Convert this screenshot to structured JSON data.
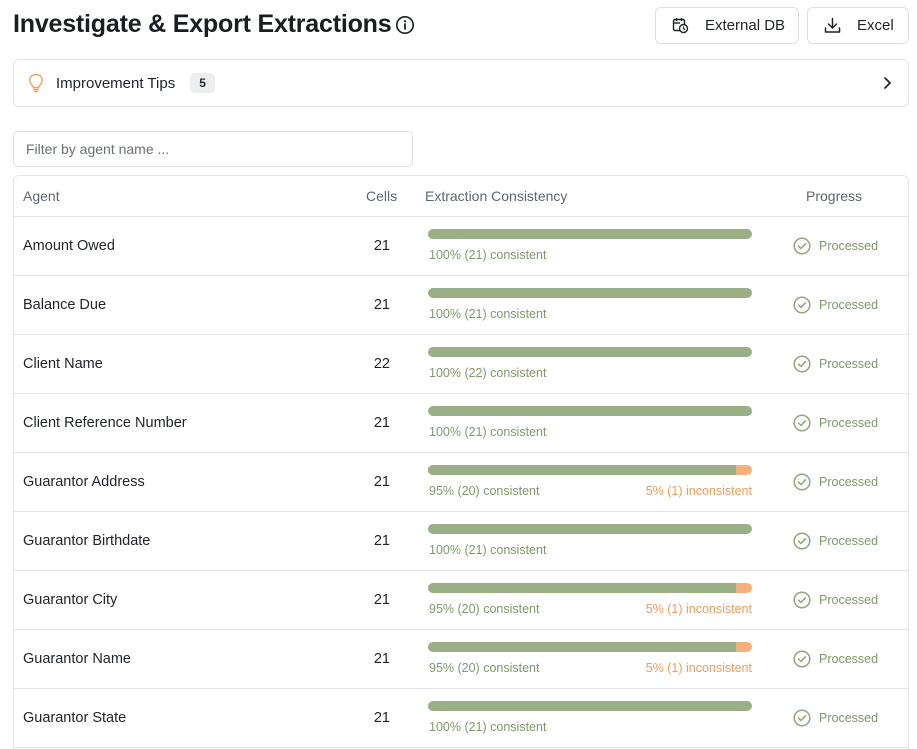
{
  "header": {
    "title": "Investigate & Export Extractions",
    "buttons": {
      "external_db": "External DB",
      "excel": "Excel"
    }
  },
  "tips": {
    "label": "Improvement Tips",
    "count": "5"
  },
  "filter": {
    "placeholder": "Filter by agent name ..."
  },
  "table": {
    "columns": {
      "agent": "Agent",
      "cells": "Cells",
      "consistency": "Extraction Consistency",
      "progress": "Progress"
    },
    "rows": [
      {
        "agent": "Amount Owed",
        "cells": "21",
        "consistent_pct": 100,
        "consistent_text": "100% (21) consistent",
        "inconsistent_text": "",
        "progress": "Processed"
      },
      {
        "agent": "Balance Due",
        "cells": "21",
        "consistent_pct": 100,
        "consistent_text": "100% (21) consistent",
        "inconsistent_text": "",
        "progress": "Processed"
      },
      {
        "agent": "Client Name",
        "cells": "22",
        "consistent_pct": 100,
        "consistent_text": "100% (22) consistent",
        "inconsistent_text": "",
        "progress": "Processed"
      },
      {
        "agent": "Client Reference Number",
        "cells": "21",
        "consistent_pct": 100,
        "consistent_text": "100% (21) consistent",
        "inconsistent_text": "",
        "progress": "Processed"
      },
      {
        "agent": "Guarantor Address",
        "cells": "21",
        "consistent_pct": 95,
        "consistent_text": "95% (20) consistent",
        "inconsistent_text": "5% (1) inconsistent",
        "progress": "Processed"
      },
      {
        "agent": "Guarantor Birthdate",
        "cells": "21",
        "consistent_pct": 100,
        "consistent_text": "100% (21) consistent",
        "inconsistent_text": "",
        "progress": "Processed"
      },
      {
        "agent": "Guarantor City",
        "cells": "21",
        "consistent_pct": 95,
        "consistent_text": "95% (20) consistent",
        "inconsistent_text": "5% (1) inconsistent",
        "progress": "Processed"
      },
      {
        "agent": "Guarantor Name",
        "cells": "21",
        "consistent_pct": 95,
        "consistent_text": "95% (20) consistent",
        "inconsistent_text": "5% (1) inconsistent",
        "progress": "Processed"
      },
      {
        "agent": "Guarantor State",
        "cells": "21",
        "consistent_pct": 100,
        "consistent_text": "100% (21) consistent",
        "inconsistent_text": "",
        "progress": "Processed"
      }
    ]
  },
  "colors": {
    "consistent": "#9aaf86",
    "inconsistent": "#f5b07c",
    "processed": "#7f9a6a"
  },
  "icons": {
    "title": "info-icon",
    "external_db": "calendar-clock-icon",
    "excel": "download-icon",
    "tips": "lightbulb-icon",
    "tips_toggle": "chevron-right-icon",
    "progress": "check-circle-icon"
  }
}
